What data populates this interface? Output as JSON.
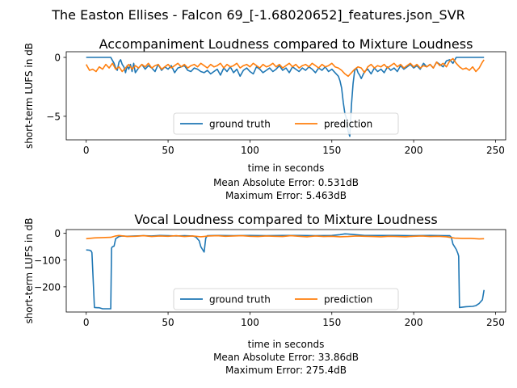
{
  "figure": {
    "suptitle": "The Easton Ellises - Falcon 69_[-1.68020652]_features.json_SVR"
  },
  "colors": {
    "ground_truth": "#1f77b4",
    "prediction": "#ff7f0e"
  },
  "chart_data": [
    {
      "type": "line",
      "title": "Accompaniment Loudness compared to Mixture Loudness",
      "xlabel": "time in seconds",
      "ylabel": "short-term LUFS in dB",
      "xlim": [
        -12.2,
        256.2
      ],
      "ylim": [
        -7.0,
        0.48
      ],
      "xticks": [
        0,
        50,
        100,
        150,
        200,
        250
      ],
      "yticks": [
        0,
        -5
      ],
      "legend": {
        "placement": "lower-center",
        "columns": 2
      },
      "grid": false,
      "metrics": [
        "Mean Absolute Error: 0.531dB",
        "Maximum Error: 5.463dB"
      ],
      "series": [
        {
          "name": "ground truth",
          "x": [
            0,
            15,
            17,
            18,
            19,
            20,
            21,
            22,
            23,
            24,
            25,
            26,
            27,
            28,
            29,
            30,
            32,
            34,
            36,
            38,
            40,
            42,
            44,
            46,
            48,
            50,
            52,
            54,
            56,
            58,
            60,
            62,
            64,
            66,
            68,
            70,
            72,
            74,
            76,
            78,
            80,
            82,
            84,
            86,
            88,
            90,
            92,
            94,
            96,
            98,
            100,
            102,
            104,
            106,
            108,
            110,
            112,
            114,
            116,
            118,
            120,
            122,
            124,
            126,
            128,
            130,
            132,
            134,
            136,
            138,
            140,
            142,
            144,
            146,
            148,
            150,
            152,
            154,
            155,
            156,
            157,
            158,
            159,
            160,
            161,
            162,
            163,
            164,
            165,
            166,
            167,
            168,
            170,
            172,
            174,
            176,
            178,
            180,
            182,
            184,
            186,
            188,
            190,
            192,
            194,
            196,
            198,
            200,
            202,
            204,
            206,
            208,
            210,
            212,
            214,
            216,
            218,
            220,
            222,
            224,
            226,
            228,
            230,
            235,
            240,
            243
          ],
          "y": [
            0,
            0,
            -0.5,
            -0.9,
            -1.1,
            -0.4,
            -0.2,
            -0.6,
            -0.8,
            -1.3,
            -0.7,
            -1.0,
            -0.6,
            -1.2,
            -0.5,
            -1.3,
            -0.9,
            -0.6,
            -1.0,
            -0.7,
            -0.9,
            -1.2,
            -0.6,
            -1.1,
            -0.8,
            -1.0,
            -0.7,
            -1.3,
            -0.9,
            -0.8,
            -0.7,
            -1.1,
            -1.2,
            -0.9,
            -1.0,
            -1.2,
            -1.3,
            -1.1,
            -1.4,
            -1.2,
            -1.0,
            -1.5,
            -0.9,
            -1.2,
            -0.8,
            -1.3,
            -1.0,
            -1.6,
            -1.1,
            -0.9,
            -1.2,
            -1.4,
            -0.8,
            -1.0,
            -1.3,
            -1.1,
            -0.9,
            -1.2,
            -1.0,
            -0.7,
            -1.1,
            -0.9,
            -1.3,
            -0.8,
            -1.0,
            -1.2,
            -0.9,
            -1.1,
            -0.8,
            -1.0,
            -1.3,
            -0.9,
            -1.1,
            -0.8,
            -1.2,
            -1.0,
            -1.3,
            -1.6,
            -2.0,
            -2.6,
            -3.8,
            -4.8,
            -5.2,
            -6.3,
            -6.7,
            -4.0,
            -2.2,
            -1.1,
            -0.9,
            -1.3,
            -1.5,
            -1.8,
            -1.2,
            -1.0,
            -1.4,
            -0.9,
            -1.2,
            -1.0,
            -1.3,
            -0.8,
            -1.1,
            -0.9,
            -1.2,
            -0.7,
            -1.0,
            -0.8,
            -0.6,
            -0.9,
            -0.7,
            -1.0,
            -0.5,
            -0.8,
            -0.6,
            -0.9,
            -0.4,
            -0.6,
            -0.8,
            -0.3,
            -0.2,
            -0.5,
            0,
            0,
            0,
            0,
            0,
            0
          ]
        },
        {
          "name": "prediction",
          "x": [
            0,
            2,
            4,
            6,
            8,
            10,
            12,
            14,
            16,
            18,
            20,
            22,
            24,
            26,
            28,
            30,
            32,
            34,
            36,
            38,
            40,
            42,
            44,
            46,
            48,
            50,
            52,
            54,
            56,
            58,
            60,
            62,
            64,
            66,
            68,
            70,
            72,
            74,
            76,
            78,
            80,
            82,
            84,
            86,
            88,
            90,
            92,
            94,
            96,
            98,
            100,
            102,
            104,
            106,
            108,
            110,
            112,
            114,
            116,
            118,
            120,
            122,
            124,
            126,
            128,
            130,
            132,
            134,
            136,
            138,
            140,
            142,
            144,
            146,
            148,
            150,
            152,
            154,
            156,
            158,
            160,
            162,
            164,
            166,
            168,
            170,
            172,
            174,
            176,
            178,
            180,
            182,
            184,
            186,
            188,
            190,
            192,
            194,
            196,
            198,
            200,
            202,
            204,
            206,
            208,
            210,
            212,
            214,
            216,
            218,
            220,
            222,
            224,
            226,
            228,
            230,
            232,
            234,
            236,
            238,
            240,
            242,
            243
          ],
          "y": [
            -0.6,
            -1.1,
            -1.0,
            -1.2,
            -0.8,
            -1.0,
            -0.6,
            -0.9,
            -0.5,
            -1.0,
            -0.8,
            -1.2,
            -0.9,
            -0.6,
            -1.0,
            -0.7,
            -0.9,
            -0.6,
            -0.8,
            -0.5,
            -0.9,
            -0.7,
            -0.6,
            -1.0,
            -0.8,
            -0.6,
            -0.9,
            -0.7,
            -0.5,
            -0.8,
            -0.6,
            -0.9,
            -0.7,
            -0.6,
            -0.8,
            -0.5,
            -0.7,
            -0.9,
            -0.6,
            -0.8,
            -0.7,
            -0.5,
            -0.9,
            -0.6,
            -0.8,
            -0.7,
            -0.5,
            -0.9,
            -0.7,
            -0.6,
            -0.8,
            -0.5,
            -0.7,
            -0.9,
            -0.6,
            -0.8,
            -0.7,
            -0.5,
            -0.8,
            -0.6,
            -0.9,
            -0.7,
            -0.5,
            -0.8,
            -0.6,
            -0.9,
            -0.7,
            -0.6,
            -0.8,
            -0.5,
            -0.7,
            -0.9,
            -0.6,
            -0.8,
            -0.7,
            -0.5,
            -0.8,
            -0.9,
            -1.1,
            -1.4,
            -1.6,
            -1.3,
            -1.0,
            -0.8,
            -0.9,
            -1.3,
            -0.8,
            -0.6,
            -0.9,
            -0.7,
            -0.8,
            -0.6,
            -0.9,
            -0.7,
            -0.5,
            -0.8,
            -0.6,
            -0.9,
            -0.7,
            -0.5,
            -0.8,
            -0.6,
            -0.9,
            -0.7,
            -0.8,
            -0.6,
            -0.9,
            -0.4,
            -0.7,
            -0.5,
            -0.8,
            -0.3,
            -0.1,
            -0.5,
            -0.8,
            -1.0,
            -0.9,
            -1.1,
            -0.8,
            -1.2,
            -0.9,
            -0.4,
            -0.2
          ]
        }
      ]
    },
    {
      "type": "line",
      "title": "Vocal Loudness compared to Mixture Loudness",
      "xlabel": "time in seconds",
      "ylabel": "short-term LUFS in dB",
      "xlim": [
        -12.2,
        256.2
      ],
      "ylim": [
        -294,
        14
      ],
      "xticks": [
        0,
        50,
        100,
        150,
        200,
        250
      ],
      "yticks": [
        0,
        -100,
        -200
      ],
      "legend": {
        "placement": "lower-center",
        "columns": 2
      },
      "grid": false,
      "metrics": [
        "Mean Absolute Error: 33.86dB",
        "Maximum Error: 275.4dB"
      ],
      "series": [
        {
          "name": "ground truth",
          "x": [
            0,
            2,
            3,
            3.5,
            5,
            7,
            8,
            9,
            10,
            12,
            14,
            15,
            15.5,
            16,
            17,
            18,
            20,
            22,
            25,
            30,
            35,
            40,
            45,
            50,
            55,
            60,
            65,
            67,
            69,
            70,
            71,
            72,
            73,
            74,
            80,
            90,
            100,
            110,
            120,
            130,
            140,
            150,
            155,
            158,
            160,
            170,
            180,
            190,
            200,
            210,
            220,
            222,
            223,
            224,
            226,
            227,
            227.5,
            228,
            232,
            236,
            238,
            240,
            242,
            243
          ],
          "y": [
            -62,
            -63,
            -66,
            -72,
            -277,
            -278,
            -278,
            -280,
            -282,
            -282,
            -282,
            -282,
            -55,
            -50,
            -48,
            -20,
            -12,
            -10,
            -11,
            -10,
            -9,
            -10,
            -8,
            -9,
            -10,
            -9,
            -10,
            -14,
            -28,
            -50,
            -60,
            -70,
            -18,
            -9,
            -8,
            -9,
            -8,
            -9,
            -8,
            -8,
            -9,
            -8,
            -5,
            -2,
            -3,
            -8,
            -8,
            -8,
            -9,
            -8,
            -9,
            -9,
            -15,
            -40,
            -60,
            -75,
            -85,
            -277,
            -274,
            -273,
            -270,
            -262,
            -248,
            -212
          ]
        },
        {
          "name": "prediction",
          "x": [
            0,
            5,
            10,
            15,
            18,
            20,
            25,
            30,
            35,
            40,
            45,
            50,
            55,
            60,
            65,
            70,
            75,
            80,
            85,
            90,
            95,
            100,
            105,
            110,
            115,
            120,
            125,
            130,
            135,
            140,
            145,
            150,
            155,
            160,
            165,
            170,
            175,
            180,
            185,
            190,
            195,
            200,
            205,
            210,
            215,
            220,
            225,
            230,
            235,
            240,
            243
          ],
          "y": [
            -20,
            -17,
            -16,
            -15,
            -10,
            -8,
            -12,
            -11,
            -9,
            -12,
            -10,
            -11,
            -9,
            -12,
            -10,
            -13,
            -10,
            -9,
            -11,
            -10,
            -9,
            -11,
            -12,
            -10,
            -11,
            -12,
            -9,
            -11,
            -13,
            -10,
            -12,
            -11,
            -13,
            -12,
            -10,
            -11,
            -12,
            -13,
            -11,
            -12,
            -13,
            -11,
            -10,
            -12,
            -11,
            -13,
            -18,
            -19,
            -19,
            -21,
            -20
          ]
        }
      ]
    }
  ]
}
